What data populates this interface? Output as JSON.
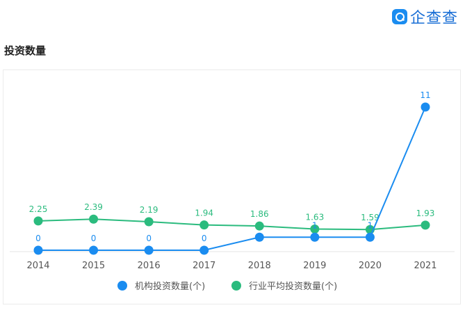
{
  "brand": {
    "name": "企查查"
  },
  "section": {
    "title": "投资数量"
  },
  "chart_data": {
    "type": "line",
    "categories": [
      "2014",
      "2015",
      "2016",
      "2017",
      "2018",
      "2019",
      "2020",
      "2021"
    ],
    "series": [
      {
        "name": "机构投资数量(个)",
        "color": "#1a8cf0",
        "values": [
          0,
          0,
          0,
          0,
          1,
          1,
          1,
          11
        ],
        "labels": [
          "0",
          "0",
          "0",
          "0",
          "",
          "1",
          "1",
          "11"
        ]
      },
      {
        "name": "行业平均投资数量(个)",
        "color": "#2bbb7e",
        "values": [
          2.25,
          2.39,
          2.19,
          1.94,
          1.86,
          1.63,
          1.59,
          1.93
        ],
        "labels": [
          "2.25",
          "2.39",
          "2.19",
          "1.94",
          "1.86",
          "1.63",
          "1.59",
          "1.93"
        ]
      }
    ],
    "ylim": [
      0,
      11
    ],
    "grid": false,
    "legend": "bottom"
  }
}
